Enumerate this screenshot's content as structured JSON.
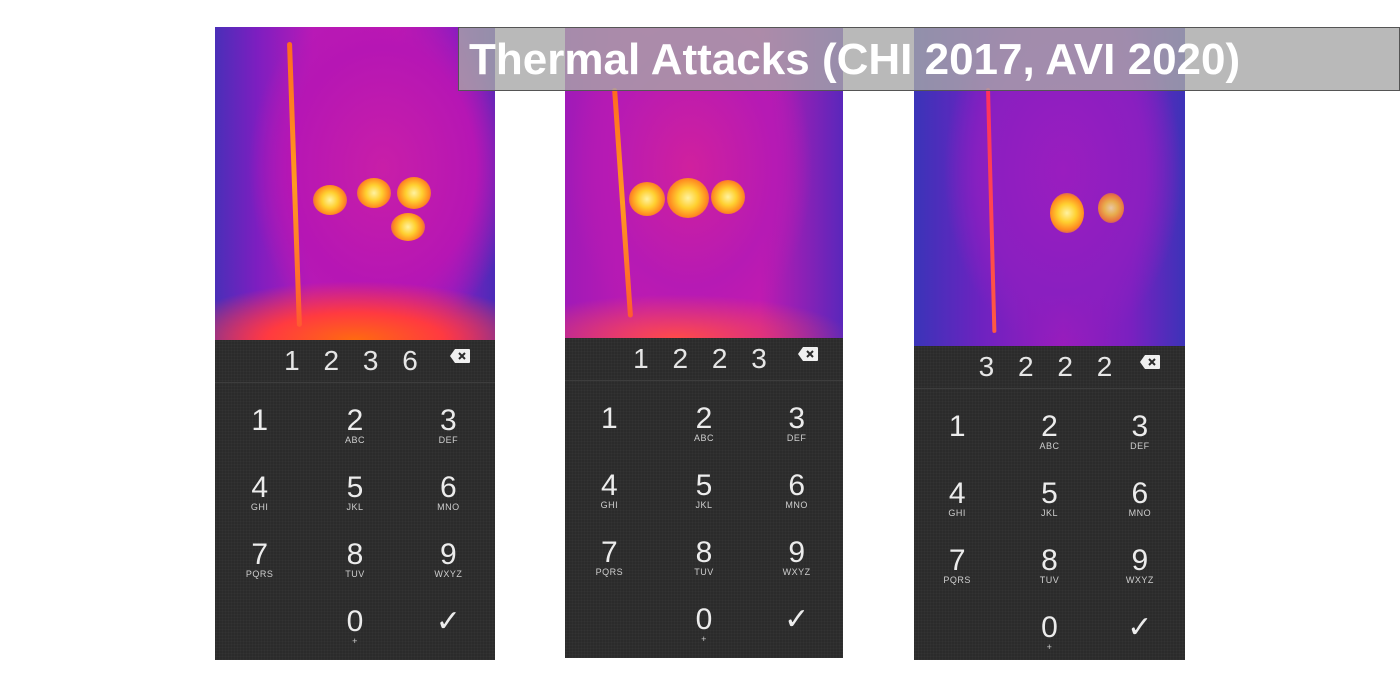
{
  "title": "Thermal Attacks (CHI 2017, AVI 2020)",
  "screens": [
    {
      "entered": "1 2 3 6",
      "keys": [
        {
          "num": "1",
          "sub": ""
        },
        {
          "num": "2",
          "sub": "ABC"
        },
        {
          "num": "3",
          "sub": "DEF"
        },
        {
          "num": "4",
          "sub": "GHI"
        },
        {
          "num": "5",
          "sub": "JKL"
        },
        {
          "num": "6",
          "sub": "MNO"
        },
        {
          "num": "7",
          "sub": "PQRS"
        },
        {
          "num": "8",
          "sub": "TUV"
        },
        {
          "num": "9",
          "sub": "WXYZ"
        },
        {
          "num": "",
          "sub": ""
        },
        {
          "num": "0",
          "sub": "+"
        },
        {
          "num": "✓",
          "sub": ""
        }
      ]
    },
    {
      "entered": "1 2 2 3",
      "keys": [
        {
          "num": "1",
          "sub": ""
        },
        {
          "num": "2",
          "sub": "ABC"
        },
        {
          "num": "3",
          "sub": "DEF"
        },
        {
          "num": "4",
          "sub": "GHI"
        },
        {
          "num": "5",
          "sub": "JKL"
        },
        {
          "num": "6",
          "sub": "MNO"
        },
        {
          "num": "7",
          "sub": "PQRS"
        },
        {
          "num": "8",
          "sub": "TUV"
        },
        {
          "num": "9",
          "sub": "WXYZ"
        },
        {
          "num": "",
          "sub": ""
        },
        {
          "num": "0",
          "sub": "+"
        },
        {
          "num": "✓",
          "sub": ""
        }
      ]
    },
    {
      "entered": "3 2 2 2",
      "keys": [
        {
          "num": "1",
          "sub": ""
        },
        {
          "num": "2",
          "sub": "ABC"
        },
        {
          "num": "3",
          "sub": "DEF"
        },
        {
          "num": "4",
          "sub": "GHI"
        },
        {
          "num": "5",
          "sub": "JKL"
        },
        {
          "num": "6",
          "sub": "MNO"
        },
        {
          "num": "7",
          "sub": "PQRS"
        },
        {
          "num": "8",
          "sub": "TUV"
        },
        {
          "num": "9",
          "sub": "WXYZ"
        },
        {
          "num": "",
          "sub": ""
        },
        {
          "num": "0",
          "sub": "+"
        },
        {
          "num": "✓",
          "sub": ""
        }
      ]
    }
  ],
  "icons": {
    "backspace": "backspace-icon",
    "confirm": "checkmark-icon"
  }
}
